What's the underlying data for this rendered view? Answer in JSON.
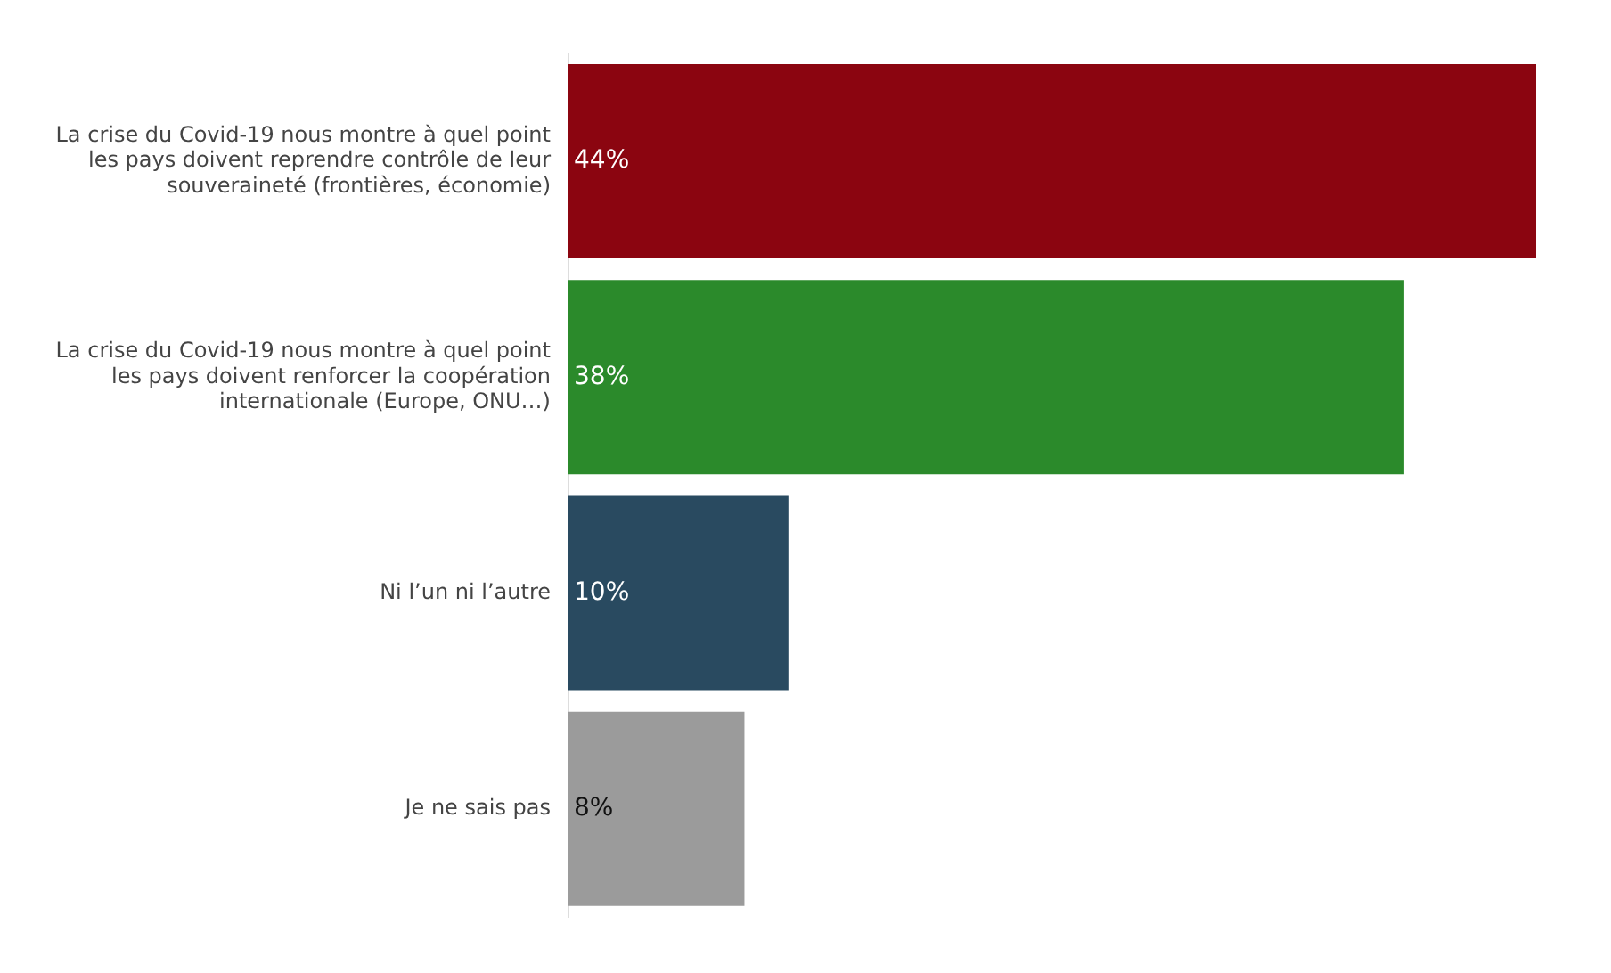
{
  "chart_data": {
    "type": "bar",
    "orientation": "horizontal",
    "categories": [
      "La crise du Covid-19 nous montre à quel point les pays doivent reprendre contrôle de leur souveraineté (frontières, économie)",
      "La crise du Covid-19 nous montre à quel point les pays doivent renforcer la coopération internationale (Europe, ONU…)",
      "Ni l’un ni l’autre",
      "Je ne sais pas"
    ],
    "values": [
      44,
      38,
      10,
      8
    ],
    "value_labels": [
      "44%",
      "38%",
      "10%",
      "8%"
    ],
    "colors": [
      "#8b0510",
      "#2b8a2b",
      "#294a60",
      "#9b9b9b"
    ],
    "legend": false
  }
}
